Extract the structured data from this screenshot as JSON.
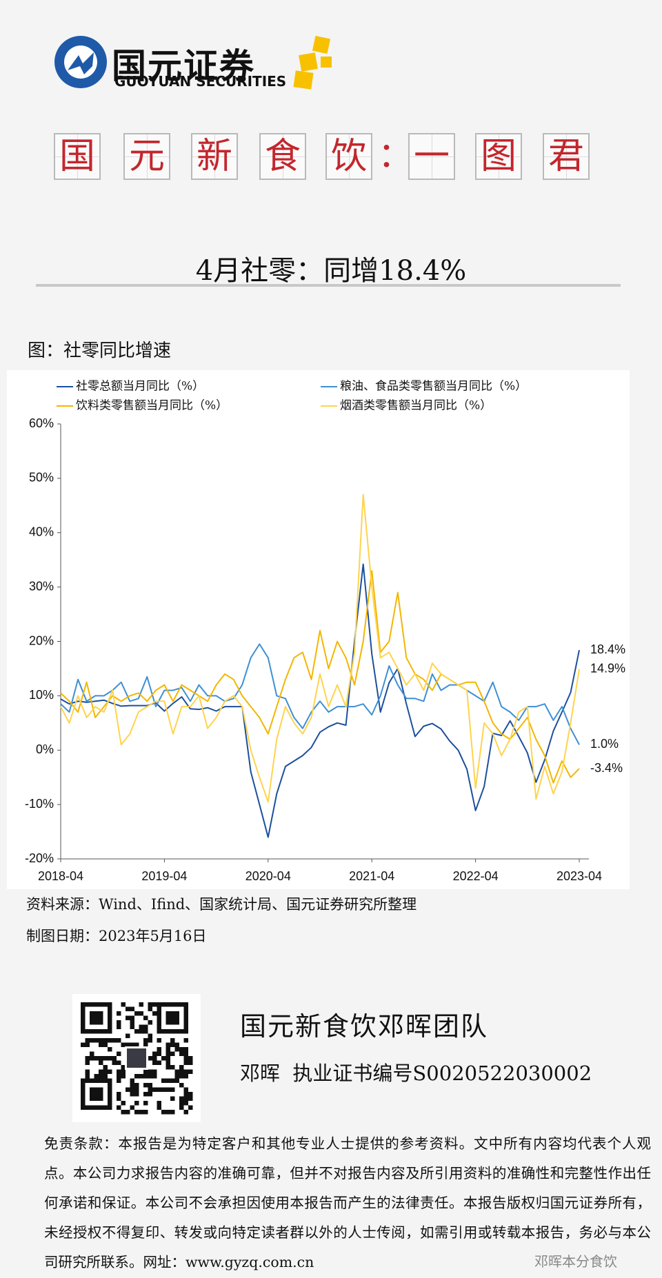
{
  "logo": {
    "name": "国元证券",
    "name_en": "GUOYUAN SECURITIES"
  },
  "banner": {
    "left": [
      "国",
      "元",
      "新",
      "食",
      "饮"
    ],
    "separator": "：",
    "right": [
      "一",
      "图",
      "君"
    ]
  },
  "headline": "4月社零：同增18.4%",
  "figure_title": "图：社零同比增速",
  "chart_data": {
    "type": "line",
    "categories": [
      "2018-04",
      null,
      null,
      null,
      null,
      null,
      null,
      null,
      null,
      null,
      null,
      null,
      "2019-04",
      null,
      null,
      null,
      null,
      null,
      null,
      null,
      null,
      null,
      null,
      null,
      "2020-04",
      null,
      null,
      null,
      null,
      null,
      null,
      null,
      null,
      null,
      null,
      null,
      "2021-04",
      null,
      null,
      null,
      null,
      null,
      null,
      null,
      null,
      null,
      null,
      null,
      "2022-04",
      null,
      null,
      null,
      null,
      null,
      null,
      null,
      null,
      null,
      null,
      null,
      "2023-04"
    ],
    "ylim": [
      -20,
      60
    ],
    "yticks": [
      {
        "value": -20,
        "label": "-20%"
      },
      {
        "value": -10,
        "label": "-10%"
      },
      {
        "value": 0,
        "label": "0%"
      },
      {
        "value": 10,
        "label": "10%"
      },
      {
        "value": 20,
        "label": "20%"
      },
      {
        "value": 30,
        "label": "30%"
      },
      {
        "value": 40,
        "label": "40%"
      },
      {
        "value": 50,
        "label": "50%"
      },
      {
        "value": 60,
        "label": "60%"
      }
    ],
    "grid": false,
    "legend": "top",
    "series": [
      {
        "name": "社零总额当月同比（%）",
        "color": "#1b4f9c",
        "end_label": "18.4%",
        "values": [
          9.4,
          8.5,
          9.0,
          8.8,
          9.0,
          9.2,
          8.6,
          8.1,
          8.2,
          8.2,
          8.2,
          8.7,
          7.2,
          8.6,
          9.8,
          7.6,
          7.5,
          7.8,
          7.2,
          8.0,
          8.0,
          8.0,
          -4,
          -10,
          -16,
          -8,
          -3,
          -2,
          -1,
          0.5,
          3.3,
          4.3,
          5.0,
          4.6,
          20,
          34.2,
          17.7,
          7,
          12.4,
          15,
          8.5,
          2.5,
          4.4,
          4.9,
          3.9,
          1.7,
          0,
          -3.5,
          -11.1,
          -6.7,
          3.1,
          2.7,
          5.4,
          2.5,
          -0.5,
          -5.9,
          -1.8,
          3.5,
          7,
          10.6,
          18.4
        ]
      },
      {
        "name": "粮油、食品类零售额当月同比（%）",
        "color": "#3d8fd4",
        "end_label": "1.0%",
        "values": [
          8.5,
          7,
          13,
          9,
          10,
          10,
          11,
          12.5,
          9,
          9.5,
          13.5,
          8,
          11,
          11,
          11.5,
          9,
          12,
          10,
          10,
          9,
          9.5,
          12,
          17,
          19.5,
          17,
          10,
          9.5,
          6,
          4,
          7,
          9,
          7,
          8,
          8,
          8,
          8.5,
          6.5,
          10,
          15.5,
          12,
          9.5,
          9.5,
          9,
          14,
          11,
          12,
          12,
          11,
          10,
          9,
          12.5,
          8,
          7,
          5.5,
          8,
          8,
          8.5,
          5.5,
          8,
          4,
          1.0
        ]
      },
      {
        "name": "饮料类零售额当月同比（%）",
        "color": "#f2b600",
        "end_label": "-3.4%",
        "values": [
          10.5,
          9,
          7,
          12.5,
          6,
          8,
          10,
          9,
          10,
          10.5,
          9,
          11,
          12,
          9,
          12,
          11,
          10,
          9,
          12,
          14,
          13,
          10,
          8,
          6,
          3,
          8,
          13,
          17,
          18,
          13,
          22,
          15,
          20,
          17,
          12,
          20,
          33,
          18,
          20,
          29,
          17,
          14,
          13,
          11,
          14,
          13,
          12,
          12.5,
          12.5,
          9,
          5,
          3,
          2,
          4,
          6,
          2,
          -1,
          -6,
          -2,
          -5,
          -3.4
        ]
      },
      {
        "name": "烟酒类零售额当月同比（%）",
        "color": "#ffd34d",
        "end_label": "14.9%",
        "values": [
          8,
          5,
          10,
          6,
          8,
          7,
          11,
          1,
          3,
          7,
          8,
          9,
          9,
          3,
          8,
          8,
          10,
          4,
          6,
          9,
          10,
          8,
          0,
          -5,
          -9.5,
          2,
          8,
          5,
          3,
          6,
          14,
          8,
          12,
          8,
          18,
          47,
          30,
          17,
          18,
          15,
          12,
          14,
          11,
          16,
          14,
          13,
          12,
          11,
          -7,
          5,
          3,
          -1,
          2,
          7,
          8,
          -9,
          -3,
          -8,
          -4,
          5,
          14.9
        ]
      }
    ]
  },
  "source": "资料来源：Wind、Ifind、国家统计局、国元证券研究所整理",
  "date": "制图日期：2023年5月16日",
  "team": "国元新食饮邓晖团队",
  "analyst": "邓晖  执业证书编号S0020522030002",
  "disclaimer": "免责条款：本报告是为特定客户和其他专业人士提供的参考资料。文中所有内容均代表个人观点。本公司力求报告内容的准确可靠，但并不对报告内容及所引用资料的准确性和完整性作出任何承诺和保证。本公司不会承担因使用本报告而产生的法律责任。本报告版权归国元证券所有，未经授权不得复印、转发或向特定读者群以外的人士传阅，如需引用或转载本报告，务必与本公司研究所联系。网址：www.gyzq.com.cn",
  "watermark": "邓晖本分食饮"
}
